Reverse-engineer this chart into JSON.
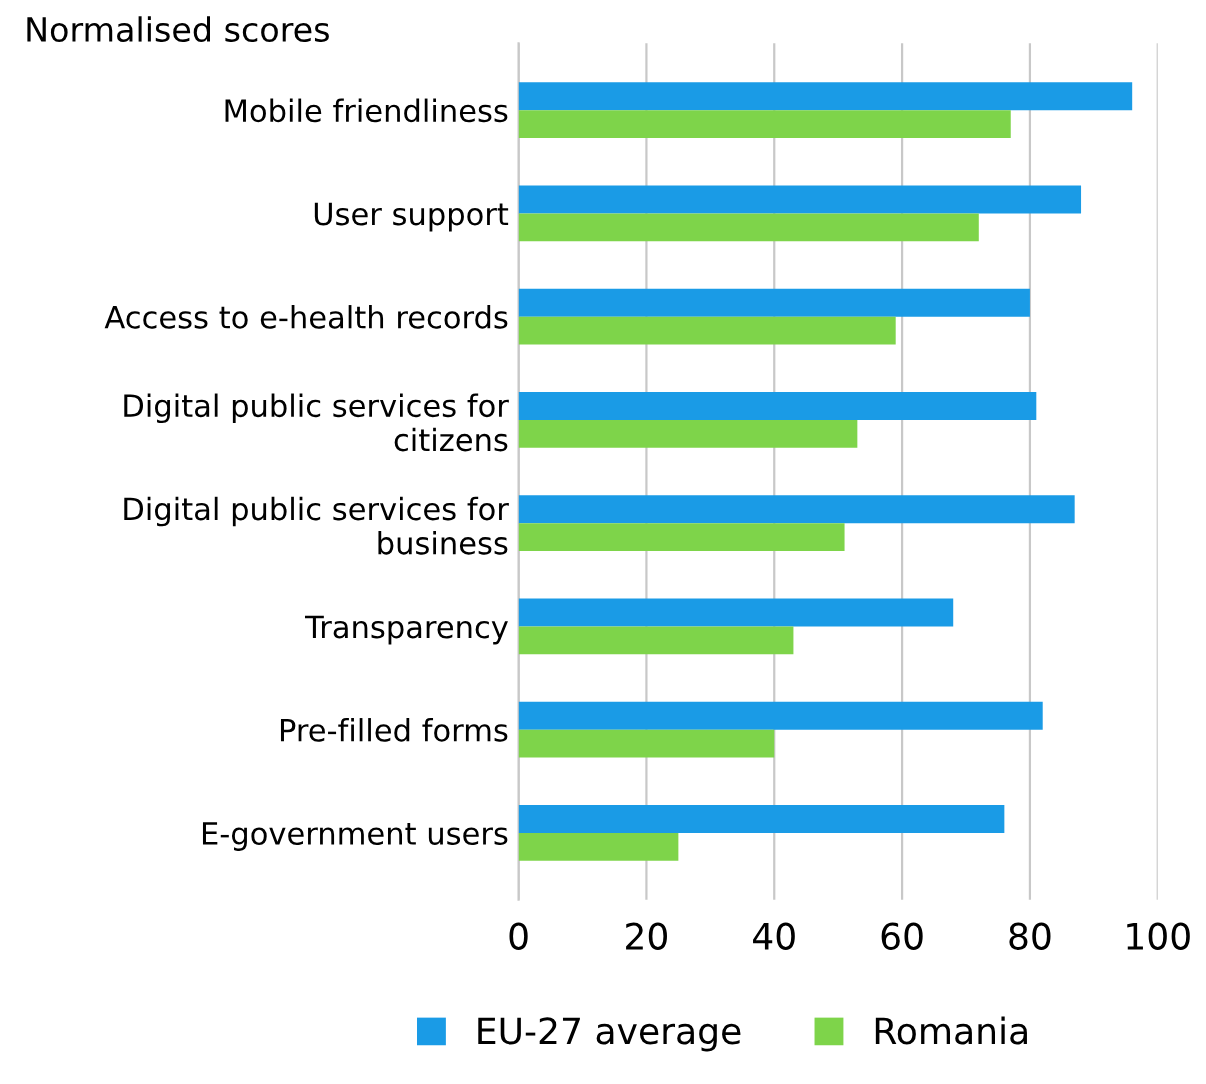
{
  "chart_data": {
    "type": "bar",
    "orientation": "horizontal",
    "title": "Normalised scores",
    "categories": [
      "Mobile friendliness",
      "User support",
      "Access to e-health records",
      "Digital public services for citizens",
      "Digital public services for business",
      "Transparency",
      "Pre-filled forms",
      "E-government users"
    ],
    "series": [
      {
        "name": "EU-27 average",
        "color": "#1a9be6",
        "values": [
          96,
          88,
          80,
          81,
          87,
          68,
          82,
          76
        ]
      },
      {
        "name": "Romania",
        "color": "#7ed44a",
        "values": [
          77,
          72,
          59,
          53,
          51,
          43,
          40,
          25
        ]
      }
    ],
    "xlim": [
      0,
      100
    ],
    "xticks": [
      0,
      20,
      40,
      60,
      80,
      100
    ],
    "grid": "x",
    "legend": "bottom"
  }
}
